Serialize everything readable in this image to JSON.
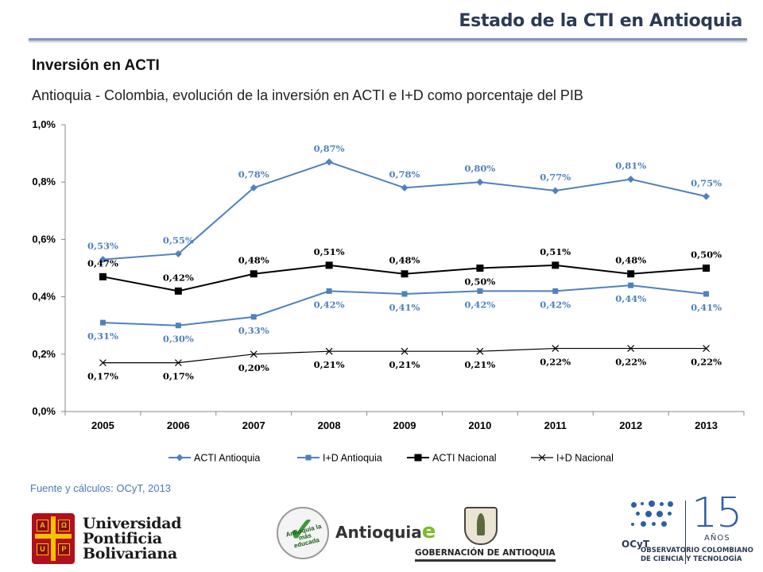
{
  "header": {
    "title": "Estado de la CTI en Antioquia"
  },
  "section_title": "Inversión en ACTI",
  "subtitle": "Antioquia - Colombia, evolución de la inversión en ACTI e I+D como porcentaje del PIB",
  "source": "Fuente y cálculos: OCyT, 2013",
  "colors": {
    "accent": "#4f81bd",
    "rule": "#7f97bd",
    "black": "#000000",
    "title": "#2b3a55"
  },
  "chart_data": {
    "type": "line",
    "x": [
      "2005",
      "2006",
      "2007",
      "2008",
      "2009",
      "2010",
      "2011",
      "2012",
      "2013"
    ],
    "y_ticks": [
      "0,0%",
      "0,2%",
      "0,4%",
      "0,6%",
      "0,8%",
      "1,0%"
    ],
    "ylim": [
      0,
      1.0
    ],
    "legend_position": "bottom",
    "grid": false,
    "series": [
      {
        "name": "ACTI Antioquia",
        "color": "#4f81bd",
        "marker": "diamond",
        "values": [
          0.53,
          0.55,
          0.78,
          0.87,
          0.78,
          0.8,
          0.77,
          0.81,
          0.75
        ],
        "labels": [
          "0,53%",
          "0,55%",
          "0,78%",
          "0,87%",
          "0,78%",
          "0,80%",
          "0,77%",
          "0,81%",
          "0,75%"
        ]
      },
      {
        "name": "I+D Antioquia",
        "color": "#4f81bd",
        "marker": "square",
        "values": [
          0.31,
          0.3,
          0.33,
          0.42,
          0.41,
          0.42,
          0.42,
          0.44,
          0.41
        ],
        "labels": [
          "0,31%",
          "0,30%",
          "0,33%",
          "0,42%",
          "0,41%",
          "0,42%",
          "0,42%",
          "0,44%",
          "0,41%"
        ]
      },
      {
        "name": "ACTI Nacional",
        "color": "#000000",
        "marker": "square-big",
        "values": [
          0.47,
          0.42,
          0.48,
          0.51,
          0.48,
          0.5,
          0.51,
          0.48,
          0.5
        ],
        "labels": [
          "0,47%",
          "0,42%",
          "0,48%",
          "0,51%",
          "0,48%",
          "0,50%",
          "0,51%",
          "0,48%",
          "0,50%"
        ]
      },
      {
        "name": "I+D Nacional",
        "color": "#000000",
        "marker": "x",
        "values": [
          0.17,
          0.17,
          0.2,
          0.21,
          0.21,
          0.21,
          0.22,
          0.22,
          0.22
        ],
        "labels": [
          "0,17%",
          "0,17%",
          "0,20%",
          "0,21%",
          "0,21%",
          "0,21%",
          "0,22%",
          "0,22%",
          "0,22%"
        ]
      }
    ]
  },
  "logos": {
    "upb": {
      "line1": "Universidad",
      "line2": "Pontificia",
      "line3": "Bolivariana",
      "q1": "A",
      "q2": "Ω",
      "q3": "U",
      "q4": "P"
    },
    "antioquia": {
      "seal_text": "Antioquia la más educada",
      "wordmark": "Antioquia",
      "wordmark_e": "e"
    },
    "gobernacion": {
      "text": "GOBERNACIÓN DE ANTIOQUIA"
    },
    "ocyt": {
      "label": "OCyT",
      "number": "15",
      "years": "AÑOS",
      "line1": "OBSERVATORIO COLOMBIANO",
      "line2": "DE CIENCIA Y TECNOLOGÍA"
    }
  }
}
